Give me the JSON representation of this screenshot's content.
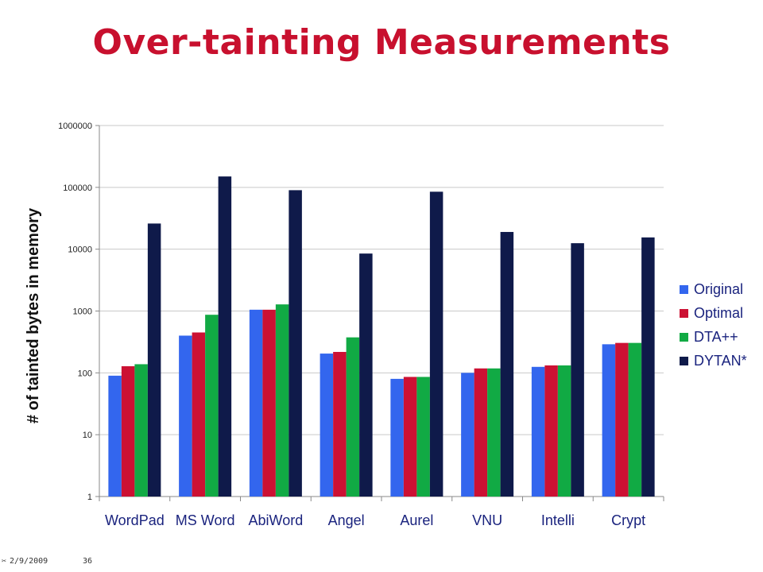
{
  "slide": {
    "title": "Over-tainting Measurements",
    "footer_date": "2/9/2009",
    "page_number": "36"
  },
  "chart_data": {
    "type": "bar",
    "title": "",
    "ylabel": "# of tainted bytes in memory",
    "xlabel": "",
    "yscale": "log",
    "ylim": [
      1,
      1000000
    ],
    "yticks": [
      "1",
      "10",
      "100",
      "1000",
      "10000",
      "100000",
      "1000000"
    ],
    "grid": true,
    "legend_position": "right",
    "categories": [
      "WordPad",
      "MS Word",
      "AbiWord",
      "Angel",
      "Aurel",
      "VNU",
      "Intelli",
      "Crypt"
    ],
    "series": [
      {
        "name": "Original",
        "color": "#3366ee",
        "values": [
          90,
          400,
          1050,
          205,
          80,
          100,
          125,
          290
        ]
      },
      {
        "name": "Optimal",
        "color": "#cc1133",
        "values": [
          128,
          450,
          1050,
          218,
          86,
          118,
          132,
          305
        ]
      },
      {
        "name": "DTA++",
        "color": "#11aa44",
        "values": [
          138,
          870,
          1280,
          375,
          86,
          118,
          132,
          305
        ]
      },
      {
        "name": "DYTAN*",
        "color": "#0f1a4a",
        "values": [
          26000,
          150000,
          90000,
          8500,
          85000,
          19000,
          12500,
          15500
        ]
      }
    ]
  }
}
